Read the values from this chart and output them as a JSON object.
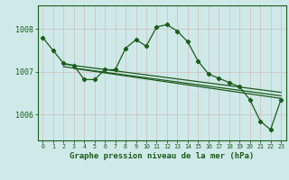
{
  "background_color": "#cfe9e9",
  "grid_color": "#b0d0c8",
  "line_color": "#1a5c1a",
  "title": "Graphe pression niveau de la mer (hPa)",
  "xlim": [
    -0.5,
    23.5
  ],
  "ylim": [
    1005.4,
    1008.55
  ],
  "yticks": [
    1006,
    1007,
    1008
  ],
  "xticks": [
    0,
    1,
    2,
    3,
    4,
    5,
    6,
    7,
    8,
    9,
    10,
    11,
    12,
    13,
    14,
    15,
    16,
    17,
    18,
    19,
    20,
    21,
    22,
    23
  ],
  "main_x": [
    0,
    1,
    2,
    3,
    4,
    5,
    6,
    7,
    8,
    9,
    10,
    11,
    12,
    13,
    14,
    15,
    16,
    17,
    18,
    19,
    20,
    21,
    22,
    23
  ],
  "main_y": [
    1007.8,
    1007.5,
    1007.2,
    1007.15,
    1006.82,
    1006.82,
    1007.05,
    1007.05,
    1007.55,
    1007.75,
    1007.6,
    1008.05,
    1008.1,
    1007.95,
    1007.7,
    1007.25,
    1006.95,
    1006.85,
    1006.75,
    1006.65,
    1006.35,
    1005.85,
    1005.65,
    1006.35
  ],
  "trend1_x": [
    2,
    23
  ],
  "trend1_y": [
    1007.18,
    1006.52
  ],
  "trend2_x": [
    2,
    23
  ],
  "trend2_y": [
    1007.12,
    1006.44
  ],
  "trend3_x": [
    3,
    23
  ],
  "trend3_y": [
    1007.08,
    1006.38
  ]
}
